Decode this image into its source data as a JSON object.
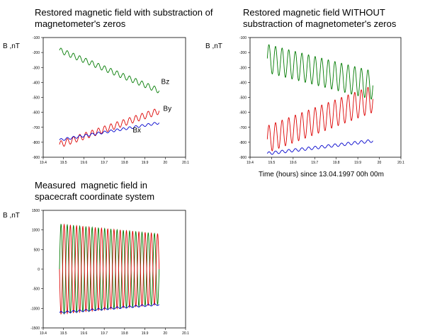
{
  "colors": {
    "bx": "#0000cc",
    "by": "#dd0000",
    "bz": "#007a00"
  },
  "chart_data": [
    {
      "type": "line",
      "title": "Restored magnetic field with substraction of\nmagnetometer's zeros",
      "ylabel": "B ,nT",
      "xlabel": "",
      "xlim": [
        19.4,
        20.1
      ],
      "ylim": [
        -900,
        -100
      ],
      "xticks": [
        "19.4",
        "19.5",
        "19.6",
        "19.7",
        "19.8",
        "19.9",
        "20",
        "20.1"
      ],
      "yticks": [
        "-100",
        "-200",
        "-300",
        "-400",
        "-500",
        "-600",
        "-700",
        "-800",
        "-900"
      ],
      "series": [
        {
          "name": "Bz",
          "color": "bz",
          "x_start": 19.48,
          "x_end": 19.97,
          "y_start": -185,
          "y_end": -455,
          "amplitude": 18,
          "periods": 16
        },
        {
          "name": "By",
          "color": "by",
          "x_start": 19.48,
          "x_end": 19.97,
          "y_start": -815,
          "y_end": -590,
          "amplitude": 22,
          "periods": 16
        },
        {
          "name": "Bx",
          "color": "bx",
          "x_start": 19.48,
          "x_end": 19.97,
          "y_start": -785,
          "y_end": -670,
          "amplitude": 8,
          "periods": 16
        }
      ]
    },
    {
      "type": "line",
      "title": "Restored magnetic field WITHOUT\nsubstraction of magnetometer's zeros",
      "ylabel": "B ,nT",
      "xlabel": "Time (hours) since 13.04.1997 00h 00m",
      "xlim": [
        19.4,
        20.1
      ],
      "ylim": [
        -900,
        -100
      ],
      "xticks": [
        "19.4",
        "19.5",
        "19.6",
        "19.7",
        "19.8",
        "19.9",
        "20",
        "20.1"
      ],
      "yticks": [
        "-100",
        "-200",
        "-300",
        "-400",
        "-500",
        "-600",
        "-700",
        "-800",
        "-900"
      ],
      "series": [
        {
          "name": "",
          "color": "bz",
          "x_start": 19.48,
          "x_end": 19.97,
          "y_start": -240,
          "y_end": -420,
          "amplitude": 95,
          "periods": 16
        },
        {
          "name": "",
          "color": "by",
          "x_start": 19.48,
          "x_end": 19.97,
          "y_start": -780,
          "y_end": -510,
          "amplitude": 90,
          "periods": 16
        },
        {
          "name": "",
          "color": "bx",
          "x_start": 19.48,
          "x_end": 19.97,
          "y_start": -875,
          "y_end": -790,
          "amplitude": 10,
          "periods": 16
        }
      ]
    },
    {
      "type": "line",
      "title": "Measured  magnetic field in\nspacecraft coordinate system",
      "ylabel": "B ,nT",
      "xlabel": "",
      "xlim": [
        19.4,
        20.1
      ],
      "ylim": [
        -1500,
        1500
      ],
      "xticks": [
        "19.4",
        "19.5",
        "19.6",
        "19.7",
        "19.8",
        "19.9",
        "20",
        "20.1"
      ],
      "yticks": [
        "1500",
        "1000",
        "500",
        "0",
        "-500",
        "-1000",
        "-1500"
      ],
      "series": [
        {
          "name": "",
          "color": "bz",
          "x_start": 19.48,
          "x_end": 19.97,
          "y_start": 0,
          "y_end": 0,
          "amplitude": 1150,
          "periods": 16,
          "amp_end": 900
        },
        {
          "name": "",
          "color": "by",
          "x_start": 19.48,
          "x_end": 19.97,
          "y_start": 0,
          "y_end": 0,
          "amplitude": 1150,
          "periods": 16,
          "amp_end": 900,
          "phase": 3.14159
        },
        {
          "name": "",
          "color": "bx",
          "x_start": 19.48,
          "x_end": 19.97,
          "y_start": -1110,
          "y_end": -900,
          "amplitude": 25,
          "periods": 16
        }
      ]
    }
  ]
}
